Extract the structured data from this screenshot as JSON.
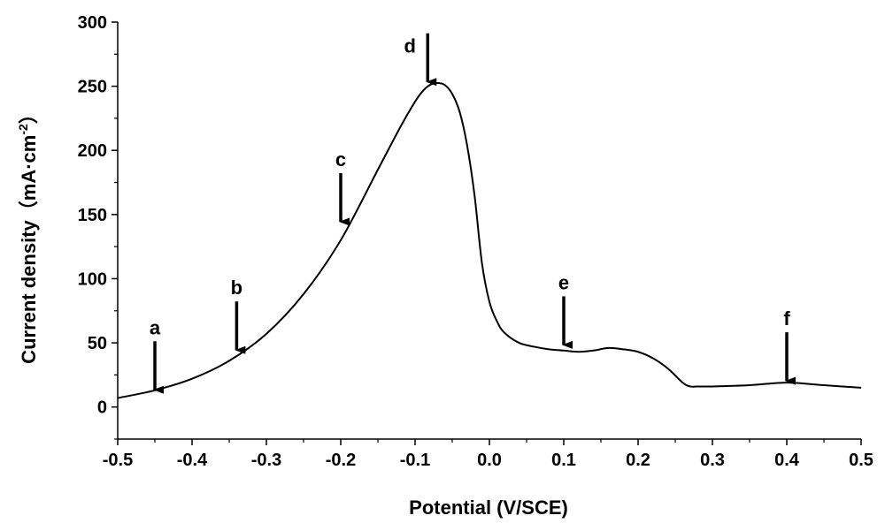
{
  "chart_data": {
    "type": "line",
    "title": "",
    "xlabel": "Potential (V/SCE)",
    "ylabel": "Current density（mA·cm⁻²）",
    "ylabel_main": "Current density（mA·cm",
    "ylabel_sup": "-2",
    "ylabel_close": "）",
    "xlim": [
      -0.5,
      0.5
    ],
    "ylim": [
      -25,
      300
    ],
    "xticks": [
      -0.5,
      -0.4,
      -0.3,
      -0.2,
      -0.1,
      0.0,
      0.1,
      0.2,
      0.3,
      0.4,
      0.5
    ],
    "xtick_labels": [
      "-0.5",
      "-0.4",
      "-0.3",
      "-0.2",
      "-0.1",
      "0.0",
      "0.1",
      "0.2",
      "0.3",
      "0.4",
      "0.5"
    ],
    "yticks": [
      0,
      50,
      100,
      150,
      200,
      250,
      300
    ],
    "ytick_labels": [
      "0",
      "50",
      "100",
      "150",
      "200",
      "250",
      "300"
    ],
    "series": [
      {
        "name": "current density",
        "x": [
          -0.5,
          -0.45,
          -0.4,
          -0.35,
          -0.3,
          -0.25,
          -0.2,
          -0.15,
          -0.12,
          -0.1,
          -0.09,
          -0.08,
          -0.07,
          -0.06,
          -0.05,
          -0.04,
          -0.03,
          -0.02,
          -0.01,
          0.0,
          0.01,
          0.02,
          0.04,
          0.06,
          0.08,
          0.1,
          0.12,
          0.14,
          0.16,
          0.18,
          0.2,
          0.22,
          0.24,
          0.26,
          0.27,
          0.28,
          0.3,
          0.35,
          0.4,
          0.45,
          0.5
        ],
        "y": [
          7,
          13,
          22,
          36,
          57,
          88,
          130,
          185,
          218,
          238,
          246,
          251,
          252.5,
          251,
          244,
          230,
          204,
          165,
          112,
          82,
          67,
          58,
          50,
          47,
          45,
          44,
          43,
          44,
          46,
          45,
          43,
          38,
          30,
          19,
          16,
          16,
          16,
          17,
          19,
          17,
          15
        ]
      }
    ],
    "annotations": [
      {
        "label": "a",
        "x": -0.45,
        "y": 12
      },
      {
        "label": "b",
        "x": -0.34,
        "y": 43
      },
      {
        "label": "c",
        "x": -0.2,
        "y": 143
      },
      {
        "label": "d",
        "x": -0.083,
        "y": 252
      },
      {
        "label": "e",
        "x": 0.1,
        "y": 47
      },
      {
        "label": "f",
        "x": 0.4,
        "y": 19
      }
    ]
  }
}
